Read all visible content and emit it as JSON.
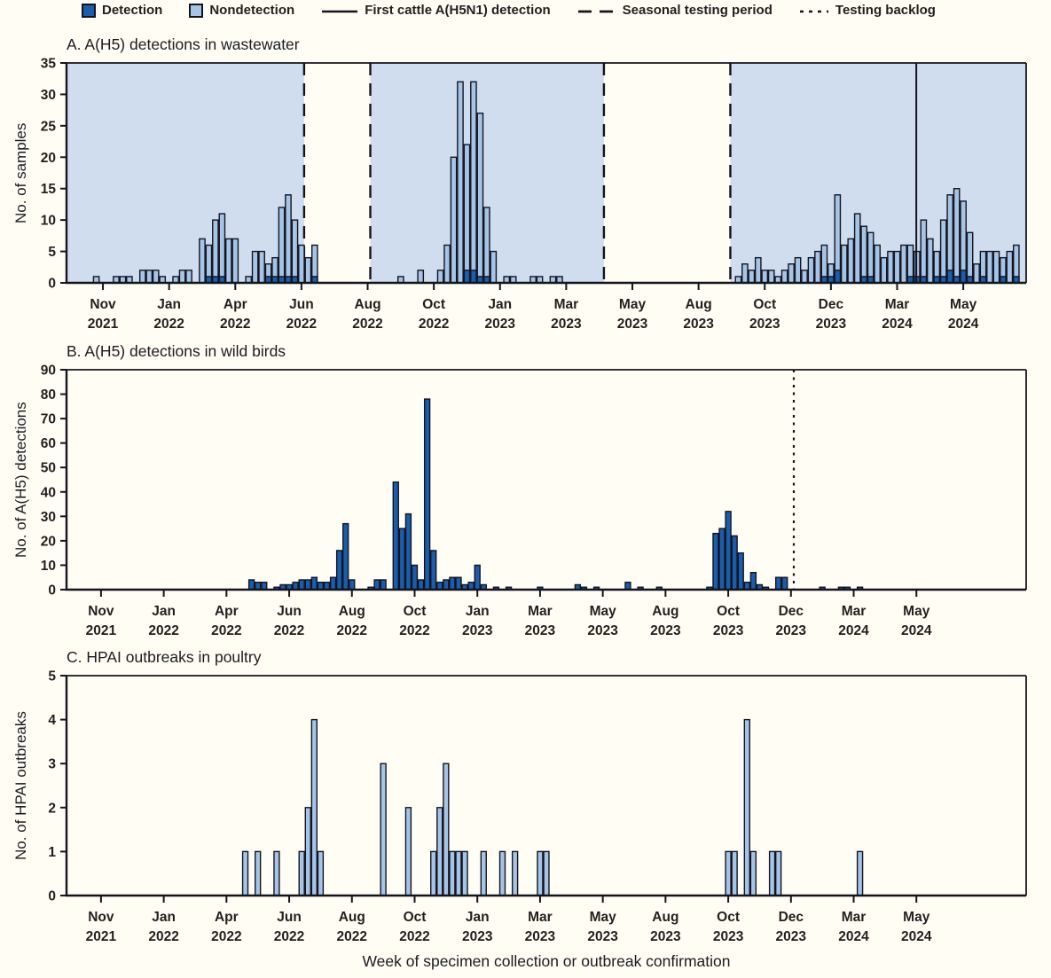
{
  "colors": {
    "background": "#fffdf4",
    "detection": "#1a5dab",
    "nondetection": "#a6c4e6",
    "shade": "#cfddef",
    "outline": "#14141f",
    "axis": "#14141f",
    "text": "#231f20"
  },
  "legend": {
    "items": [
      {
        "type": "swatch",
        "color_key": "detection",
        "label": "Detection"
      },
      {
        "type": "swatch",
        "color_key": "nondetection",
        "label": "Nondetection"
      },
      {
        "type": "line",
        "style": "solid",
        "label": "First cattle A(H5N1) detection"
      },
      {
        "type": "line",
        "style": "dash",
        "label": "Seasonal testing period"
      },
      {
        "type": "line",
        "style": "dot",
        "label": "Testing backlog"
      }
    ]
  },
  "x_axis_caption": "Week of specimen collection or outbreak confirmation",
  "tick_labels": [
    [
      "Nov",
      "2021"
    ],
    [
      "Jan",
      "2022"
    ],
    [
      "Apr",
      "2022"
    ],
    [
      "Jun",
      "2022"
    ],
    [
      "Aug",
      "2022"
    ],
    [
      "Oct",
      "2022"
    ],
    [
      "Jan",
      "2023"
    ],
    [
      "Mar",
      "2023"
    ],
    [
      "May",
      "2023"
    ],
    [
      "Aug",
      "2023"
    ],
    [
      "Oct",
      "2023"
    ],
    [
      "Dec",
      "2023"
    ],
    [
      "Mar",
      "2024"
    ],
    [
      "May",
      "2024"
    ]
  ],
  "chart_data": [
    {
      "id": "A",
      "type": "bar",
      "title": "A. A(H5) detections in wastewater",
      "ylabel": "No. of samples",
      "ylim": [
        0,
        35
      ],
      "ytick_step": 5,
      "n_weeks": 145,
      "tick_weeks": [
        5,
        15,
        25,
        35,
        45,
        55,
        65,
        75,
        85,
        95,
        105,
        115,
        125,
        135
      ],
      "bar_style": "split",
      "bars": [
        [
          4,
          1,
          0
        ],
        [
          7,
          1,
          0
        ],
        [
          8,
          1,
          0
        ],
        [
          9,
          1,
          0
        ],
        [
          11,
          2,
          0
        ],
        [
          12,
          2,
          0
        ],
        [
          13,
          2,
          0
        ],
        [
          14,
          1,
          0
        ],
        [
          16,
          1,
          0
        ],
        [
          17,
          2,
          0
        ],
        [
          18,
          2,
          0
        ],
        [
          20,
          7,
          0
        ],
        [
          21,
          6,
          1
        ],
        [
          22,
          10,
          1
        ],
        [
          23,
          11,
          1
        ],
        [
          24,
          7,
          0
        ],
        [
          25,
          7,
          0
        ],
        [
          27,
          1,
          0
        ],
        [
          28,
          5,
          0
        ],
        [
          29,
          5,
          0
        ],
        [
          30,
          3,
          1
        ],
        [
          31,
          4,
          1
        ],
        [
          32,
          12,
          1
        ],
        [
          33,
          14,
          1
        ],
        [
          34,
          10,
          1
        ],
        [
          35,
          6,
          0
        ],
        [
          36,
          4,
          0
        ],
        [
          37,
          6,
          1
        ],
        [
          50,
          1,
          0
        ],
        [
          53,
          2,
          0
        ],
        [
          56,
          2,
          0
        ],
        [
          57,
          6,
          0
        ],
        [
          58,
          20,
          0
        ],
        [
          59,
          32,
          0
        ],
        [
          60,
          22,
          2
        ],
        [
          61,
          32,
          2
        ],
        [
          62,
          27,
          1
        ],
        [
          63,
          12,
          1
        ],
        [
          64,
          5,
          0
        ],
        [
          66,
          1,
          0
        ],
        [
          67,
          1,
          0
        ],
        [
          70,
          1,
          0
        ],
        [
          71,
          1,
          0
        ],
        [
          73,
          1,
          0
        ],
        [
          74,
          1,
          0
        ],
        [
          101,
          1,
          0
        ],
        [
          102,
          3,
          0
        ],
        [
          103,
          2,
          0
        ],
        [
          104,
          4,
          0
        ],
        [
          105,
          2,
          0
        ],
        [
          106,
          2,
          0
        ],
        [
          107,
          1,
          0
        ],
        [
          108,
          2,
          0
        ],
        [
          109,
          3,
          0
        ],
        [
          110,
          4,
          0
        ],
        [
          111,
          2,
          0
        ],
        [
          112,
          4,
          0
        ],
        [
          113,
          5,
          0
        ],
        [
          114,
          6,
          1
        ],
        [
          115,
          3,
          1
        ],
        [
          116,
          14,
          2
        ],
        [
          117,
          6,
          0
        ],
        [
          118,
          7,
          0
        ],
        [
          119,
          11,
          0
        ],
        [
          120,
          9,
          1
        ],
        [
          121,
          8,
          1
        ],
        [
          122,
          6,
          0
        ],
        [
          123,
          4,
          0
        ],
        [
          124,
          5,
          0
        ],
        [
          125,
          5,
          0
        ],
        [
          126,
          6,
          0
        ],
        [
          127,
          6,
          1
        ],
        [
          128,
          5,
          1
        ],
        [
          129,
          10,
          1
        ],
        [
          130,
          7,
          0
        ],
        [
          131,
          5,
          1
        ],
        [
          132,
          10,
          1
        ],
        [
          133,
          14,
          2
        ],
        [
          134,
          15,
          1
        ],
        [
          135,
          13,
          2
        ],
        [
          136,
          8,
          1
        ],
        [
          137,
          3,
          0
        ],
        [
          138,
          5,
          1
        ],
        [
          139,
          5,
          0
        ],
        [
          140,
          5,
          0
        ],
        [
          141,
          4,
          1
        ],
        [
          142,
          5,
          0
        ],
        [
          143,
          6,
          1
        ]
      ],
      "shaded_regions": [
        {
          "from": -0.5,
          "to": 35.4
        },
        {
          "from": 45.4,
          "to": 80.7
        },
        {
          "from": 99.8,
          "to": 144.5
        }
      ],
      "dashed_line_weeks": [
        35.4,
        45.4,
        80.7,
        99.8
      ],
      "solid_line_week": 127.9
    },
    {
      "id": "B",
      "type": "bar",
      "title": "B. A(H5) detections in wild birds",
      "ylabel": "No. of A(H5) detections",
      "ylim": [
        0,
        90
      ],
      "ytick_step": 10,
      "n_weeks": 153,
      "tick_weeks": [
        5,
        15,
        25,
        35,
        45,
        55,
        65,
        75,
        85,
        95,
        105,
        115,
        125,
        135
      ],
      "bar_style": "detection",
      "bars": [
        [
          29,
          4
        ],
        [
          30,
          3
        ],
        [
          31,
          3
        ],
        [
          33,
          1
        ],
        [
          34,
          2
        ],
        [
          35,
          2
        ],
        [
          36,
          3
        ],
        [
          37,
          4
        ],
        [
          38,
          4
        ],
        [
          39,
          5
        ],
        [
          40,
          3
        ],
        [
          41,
          3
        ],
        [
          42,
          5
        ],
        [
          43,
          16
        ],
        [
          44,
          27
        ],
        [
          45,
          4
        ],
        [
          48,
          1
        ],
        [
          49,
          4
        ],
        [
          50,
          4
        ],
        [
          52,
          44
        ],
        [
          53,
          25
        ],
        [
          54,
          31
        ],
        [
          55,
          10
        ],
        [
          56,
          4
        ],
        [
          57,
          78
        ],
        [
          58,
          16
        ],
        [
          59,
          3
        ],
        [
          60,
          4
        ],
        [
          61,
          5
        ],
        [
          62,
          5
        ],
        [
          63,
          2
        ],
        [
          64,
          3
        ],
        [
          65,
          10
        ],
        [
          66,
          2
        ],
        [
          68,
          1
        ],
        [
          70,
          1
        ],
        [
          75,
          1
        ],
        [
          81,
          2
        ],
        [
          82,
          1
        ],
        [
          84,
          1
        ],
        [
          89,
          3
        ],
        [
          91,
          1
        ],
        [
          94,
          1
        ],
        [
          102,
          1
        ],
        [
          103,
          23
        ],
        [
          104,
          25
        ],
        [
          105,
          32
        ],
        [
          106,
          22
        ],
        [
          107,
          15
        ],
        [
          108,
          3
        ],
        [
          109,
          7
        ],
        [
          110,
          2
        ],
        [
          111,
          1
        ],
        [
          113,
          5
        ],
        [
          114,
          5
        ],
        [
          120,
          1
        ],
        [
          123,
          1
        ],
        [
          124,
          1
        ],
        [
          126,
          1
        ]
      ],
      "dotted_line_week": 115.45
    },
    {
      "id": "C",
      "type": "bar",
      "title": "C. HPAI outbreaks in poultry",
      "ylabel": "No. of HPAI outbreaks",
      "ylim": [
        0,
        5
      ],
      "ytick_step": 1,
      "n_weeks": 153,
      "tick_weeks": [
        5,
        15,
        25,
        35,
        45,
        55,
        65,
        75,
        85,
        95,
        105,
        115,
        125,
        135
      ],
      "bar_style": "nondetection",
      "bars": [
        [
          28,
          1
        ],
        [
          30,
          1
        ],
        [
          33,
          1
        ],
        [
          37,
          1
        ],
        [
          38,
          2
        ],
        [
          39,
          4
        ],
        [
          40,
          1
        ],
        [
          50,
          3
        ],
        [
          54,
          2
        ],
        [
          58,
          1
        ],
        [
          59,
          2
        ],
        [
          60,
          3
        ],
        [
          61,
          1
        ],
        [
          62,
          1
        ],
        [
          63,
          1
        ],
        [
          66,
          1
        ],
        [
          69,
          1
        ],
        [
          71,
          1
        ],
        [
          75,
          1
        ],
        [
          76,
          1
        ],
        [
          105,
          1
        ],
        [
          106,
          1
        ],
        [
          108,
          4
        ],
        [
          109,
          1
        ],
        [
          112,
          1
        ],
        [
          113,
          1
        ],
        [
          126,
          1
        ]
      ]
    }
  ]
}
